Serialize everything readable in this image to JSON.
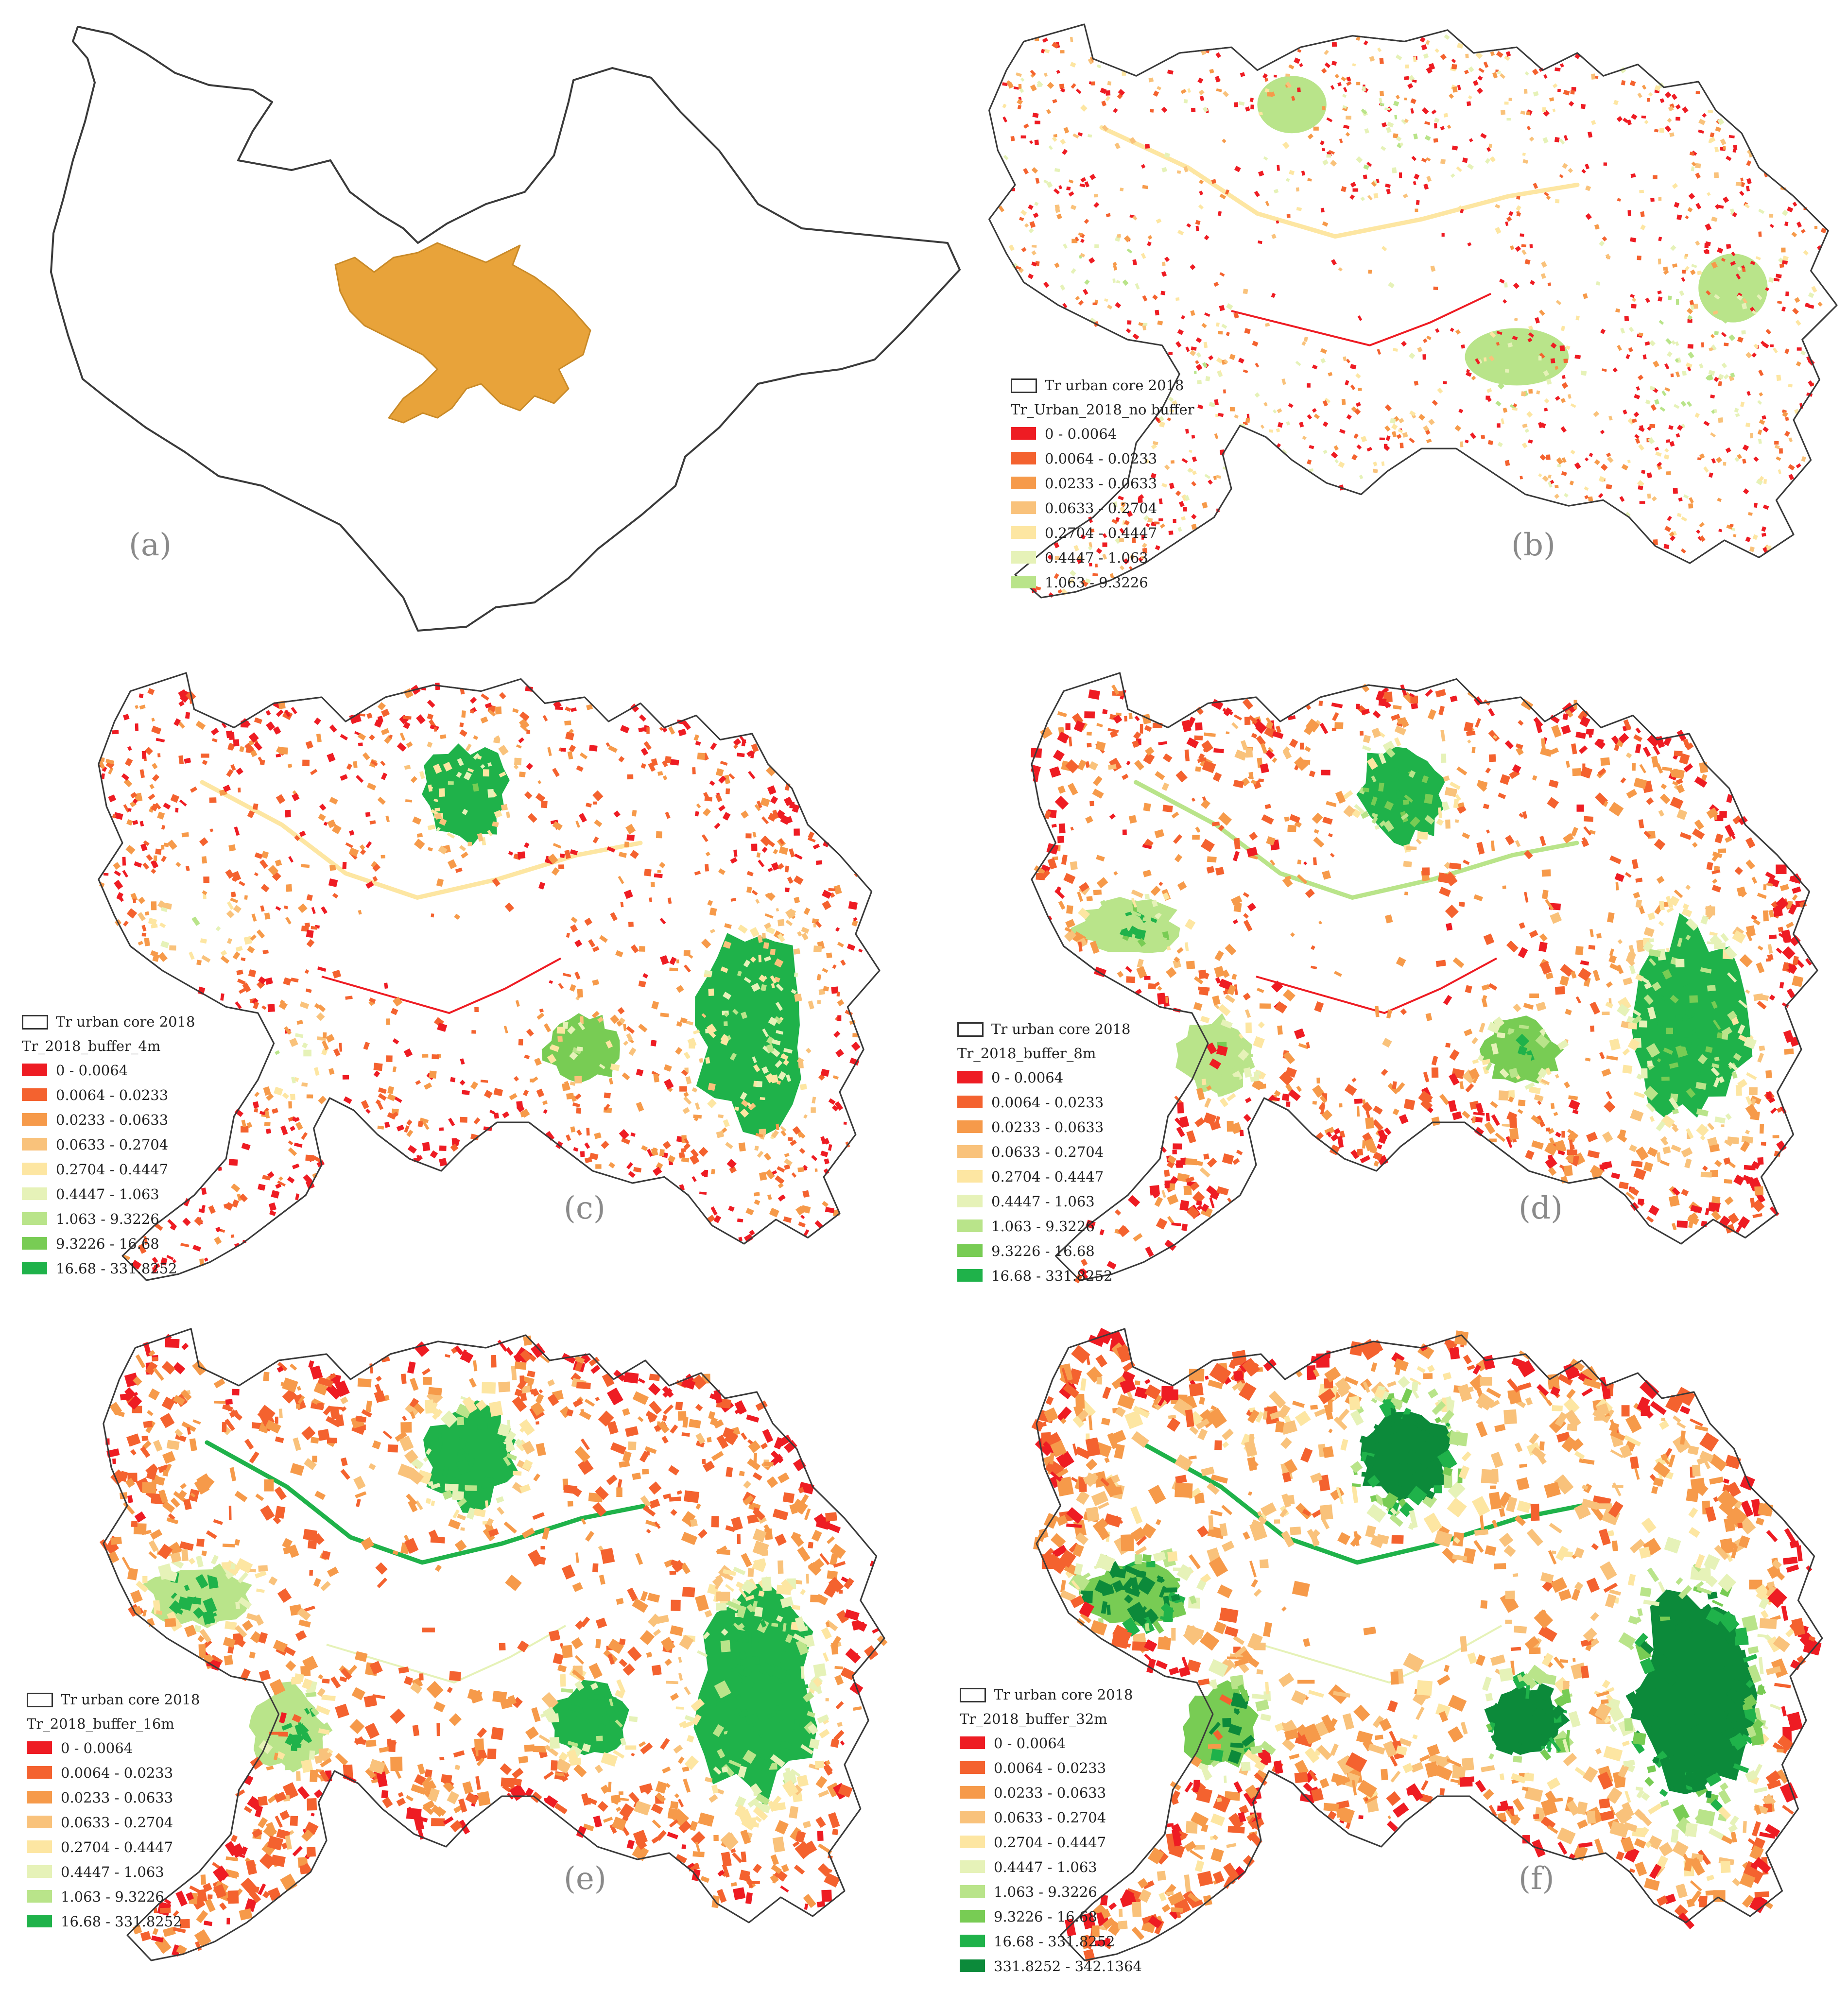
{
  "palette": {
    "c0": "#ee1c23",
    "c1": "#f4622f",
    "c2": "#f69a4a",
    "c3": "#f9c27b",
    "c4": "#fde6a2",
    "c5": "#e6f2b8",
    "c6": "#b9e48a",
    "c7": "#78cc54",
    "c8": "#1fb24a",
    "c9": "#0c8a3a",
    "core": "#e8a33a",
    "outline": "#3a3a3a"
  },
  "common_ranges": [
    "0 - 0.0064",
    "0.0064 - 0.0233",
    "0.0233 - 0.0633",
    "0.0633 - 0.2704",
    "0.2704 - 0.4447",
    "0.4447 - 1.063",
    "1.063 - 9.3226"
  ],
  "panels": {
    "a": {
      "label": "(a)"
    },
    "b": {
      "label": "(b)",
      "legend": {
        "outline_label": "Tr urban core 2018",
        "title": "Tr_Urban_2018_no buffer",
        "classes": [
          "0 - 0.0064",
          "0.0064 - 0.0233",
          "0.0233 - 0.0633",
          "0.0633 - 0.2704",
          "0.2704 - 0.4447",
          "0.4447 - 1.063",
          "1.063 - 9.3226"
        ],
        "colors": [
          "c0",
          "c1",
          "c2",
          "c3",
          "c4",
          "c5",
          "c6"
        ]
      }
    },
    "c": {
      "label": "(c)",
      "legend": {
        "outline_label": "Tr urban core 2018",
        "title": "Tr_2018_buffer_4m",
        "classes": [
          "0 - 0.0064",
          "0.0064 - 0.0233",
          "0.0233 - 0.0633",
          "0.0633 - 0.2704",
          "0.2704 - 0.4447",
          "0.4447 - 1.063",
          "1.063 - 9.3226",
          "9.3226 - 16.68",
          "16.68 - 331.8252"
        ],
        "colors": [
          "c0",
          "c1",
          "c2",
          "c3",
          "c4",
          "c5",
          "c6",
          "c7",
          "c8"
        ]
      }
    },
    "d": {
      "label": "(d)",
      "legend": {
        "outline_label": "Tr urban core 2018",
        "title": "Tr_2018_buffer_8m",
        "classes": [
          "0 - 0.0064",
          "0.0064 - 0.0233",
          "0.0233 - 0.0633",
          "0.0633 - 0.2704",
          "0.2704 - 0.4447",
          "0.4447 - 1.063",
          "1.063 - 9.3226",
          "9.3226 - 16.68",
          "16.68 - 331.8252"
        ],
        "colors": [
          "c0",
          "c1",
          "c2",
          "c3",
          "c4",
          "c5",
          "c6",
          "c7",
          "c8"
        ]
      }
    },
    "e": {
      "label": "(e)",
      "legend": {
        "outline_label": "Tr urban core 2018",
        "title": "Tr_2018_buffer_16m",
        "classes": [
          "0 - 0.0064",
          "0.0064 - 0.0233",
          "0.0233 - 0.0633",
          "0.0633 - 0.2704",
          "0.2704 - 0.4447",
          "0.4447 - 1.063",
          "1.063 - 9.3226",
          "16.68 - 331.8252"
        ],
        "colors": [
          "c0",
          "c1",
          "c2",
          "c3",
          "c4",
          "c5",
          "c6",
          "c8"
        ]
      }
    },
    "f": {
      "label": "(f)",
      "legend": {
        "outline_label": "Tr urban core 2018",
        "title": "Tr_2018_buffer_32m",
        "classes": [
          "0 - 0.0064",
          "0.0064 - 0.0233",
          "0.0233 - 0.0633",
          "0.0633 - 0.2704",
          "0.2704 - 0.4447",
          "0.4447 - 1.063",
          "1.063 - 9.3226",
          "9.3226 - 16.68",
          "16.68 - 331.8252",
          "331.8252 - 342.1364"
        ],
        "colors": [
          "c0",
          "c1",
          "c2",
          "c3",
          "c4",
          "c5",
          "c6",
          "c7",
          "c8",
          "c9"
        ]
      }
    }
  }
}
